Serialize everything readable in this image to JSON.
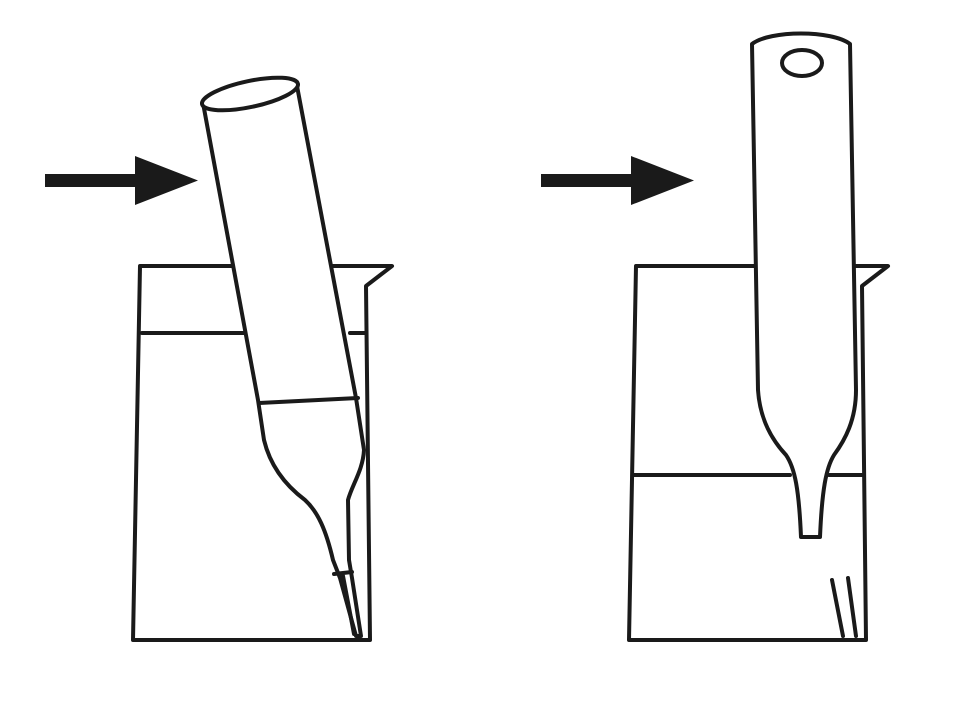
{
  "figure": {
    "panels": [
      {
        "id": "left",
        "description_visible_text": "",
        "arrow_icon": "arrow-right-icon",
        "pipette_state": "tilted-with-finger-opening"
      },
      {
        "id": "right",
        "description_visible_text": "",
        "arrow_icon": "arrow-right-icon",
        "pipette_state": "upright-with-finger-hole"
      }
    ],
    "colors": {
      "ink": "#1a1a1a",
      "background": "#ffffff"
    }
  }
}
